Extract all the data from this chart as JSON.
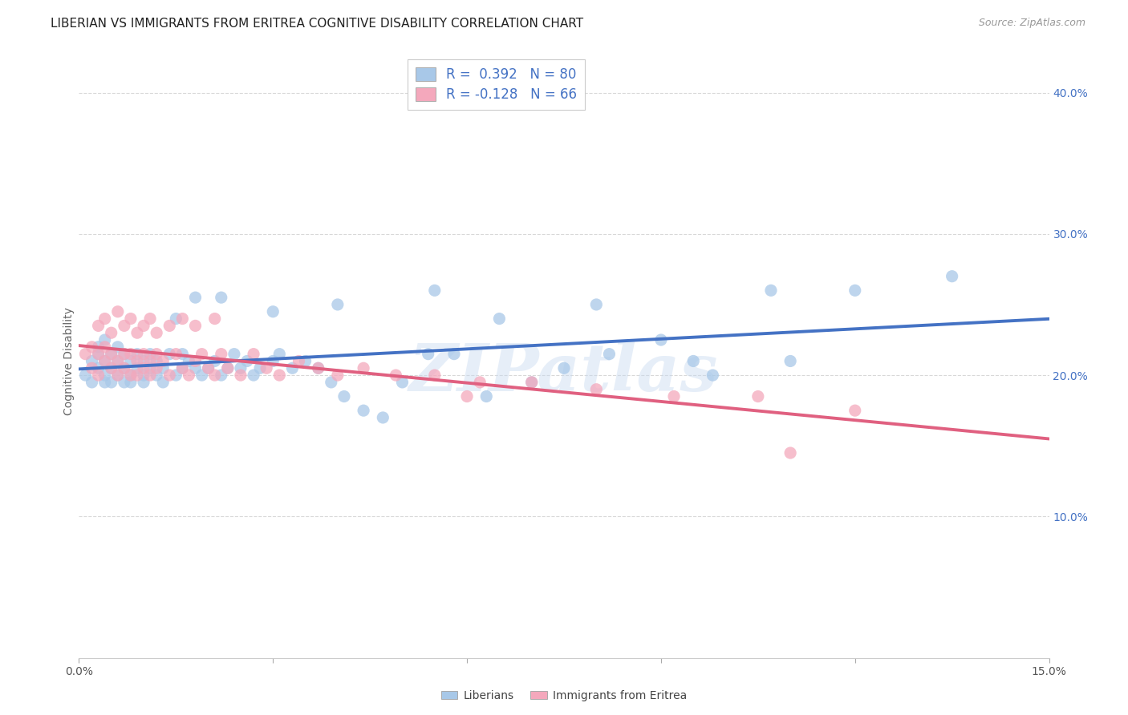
{
  "title": "LIBERIAN VS IMMIGRANTS FROM ERITREA COGNITIVE DISABILITY CORRELATION CHART",
  "source": "Source: ZipAtlas.com",
  "ylabel": "Cognitive Disability",
  "xlim": [
    0.0,
    0.15
  ],
  "ylim": [
    0.0,
    0.42
  ],
  "background_color": "#ffffff",
  "grid_color": "#d8d8d8",
  "blue_color": "#a8c8e8",
  "pink_color": "#f4a8bc",
  "blue_line_color": "#4472c4",
  "pink_line_color": "#e06080",
  "R_blue": 0.392,
  "N_blue": 80,
  "R_pink": -0.128,
  "N_pink": 66,
  "watermark": "ZIPatlas",
  "blue_scatter_x": [
    0.001,
    0.002,
    0.002,
    0.003,
    0.003,
    0.003,
    0.004,
    0.004,
    0.004,
    0.004,
    0.005,
    0.005,
    0.005,
    0.006,
    0.006,
    0.006,
    0.007,
    0.007,
    0.007,
    0.008,
    0.008,
    0.008,
    0.009,
    0.009,
    0.01,
    0.01,
    0.01,
    0.011,
    0.011,
    0.012,
    0.012,
    0.013,
    0.013,
    0.014,
    0.015,
    0.016,
    0.016,
    0.017,
    0.018,
    0.019,
    0.02,
    0.021,
    0.022,
    0.023,
    0.024,
    0.025,
    0.026,
    0.027,
    0.028,
    0.03,
    0.031,
    0.033,
    0.035,
    0.037,
    0.039,
    0.041,
    0.044,
    0.047,
    0.05,
    0.054,
    0.058,
    0.063,
    0.07,
    0.075,
    0.082,
    0.09,
    0.098,
    0.107,
    0.12,
    0.135,
    0.015,
    0.018,
    0.022,
    0.03,
    0.04,
    0.055,
    0.065,
    0.08,
    0.095,
    0.11
  ],
  "blue_scatter_y": [
    0.2,
    0.21,
    0.195,
    0.215,
    0.205,
    0.22,
    0.2,
    0.21,
    0.195,
    0.225,
    0.205,
    0.215,
    0.195,
    0.21,
    0.2,
    0.22,
    0.195,
    0.205,
    0.215,
    0.2,
    0.21,
    0.195,
    0.205,
    0.215,
    0.2,
    0.21,
    0.195,
    0.205,
    0.215,
    0.2,
    0.21,
    0.195,
    0.205,
    0.215,
    0.2,
    0.205,
    0.215,
    0.21,
    0.205,
    0.2,
    0.205,
    0.21,
    0.2,
    0.205,
    0.215,
    0.205,
    0.21,
    0.2,
    0.205,
    0.21,
    0.215,
    0.205,
    0.21,
    0.205,
    0.195,
    0.185,
    0.175,
    0.17,
    0.195,
    0.215,
    0.215,
    0.185,
    0.195,
    0.205,
    0.215,
    0.225,
    0.2,
    0.26,
    0.26,
    0.27,
    0.24,
    0.255,
    0.255,
    0.245,
    0.25,
    0.26,
    0.24,
    0.25,
    0.21,
    0.21
  ],
  "pink_scatter_x": [
    0.001,
    0.002,
    0.002,
    0.003,
    0.003,
    0.004,
    0.004,
    0.005,
    0.005,
    0.006,
    0.006,
    0.007,
    0.007,
    0.008,
    0.008,
    0.009,
    0.009,
    0.01,
    0.01,
    0.011,
    0.011,
    0.012,
    0.012,
    0.013,
    0.014,
    0.015,
    0.016,
    0.017,
    0.018,
    0.019,
    0.02,
    0.021,
    0.022,
    0.023,
    0.025,
    0.027,
    0.029,
    0.031,
    0.034,
    0.037,
    0.04,
    0.044,
    0.049,
    0.055,
    0.062,
    0.07,
    0.08,
    0.092,
    0.105,
    0.12,
    0.003,
    0.004,
    0.005,
    0.006,
    0.007,
    0.008,
    0.009,
    0.01,
    0.011,
    0.012,
    0.014,
    0.016,
    0.018,
    0.021,
    0.06,
    0.11
  ],
  "pink_scatter_y": [
    0.215,
    0.205,
    0.22,
    0.2,
    0.215,
    0.21,
    0.22,
    0.205,
    0.215,
    0.2,
    0.21,
    0.215,
    0.205,
    0.2,
    0.215,
    0.21,
    0.2,
    0.215,
    0.205,
    0.21,
    0.2,
    0.215,
    0.205,
    0.21,
    0.2,
    0.215,
    0.205,
    0.2,
    0.21,
    0.215,
    0.205,
    0.2,
    0.215,
    0.205,
    0.2,
    0.215,
    0.205,
    0.2,
    0.21,
    0.205,
    0.2,
    0.205,
    0.2,
    0.2,
    0.195,
    0.195,
    0.19,
    0.185,
    0.185,
    0.175,
    0.235,
    0.24,
    0.23,
    0.245,
    0.235,
    0.24,
    0.23,
    0.235,
    0.24,
    0.23,
    0.235,
    0.24,
    0.235,
    0.24,
    0.185,
    0.145
  ],
  "title_fontsize": 11,
  "label_fontsize": 10,
  "tick_fontsize": 10,
  "legend_fontsize": 12
}
